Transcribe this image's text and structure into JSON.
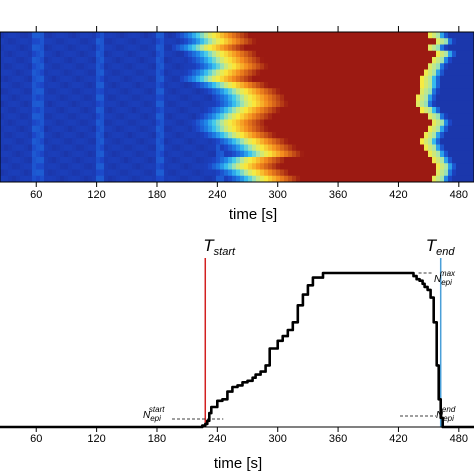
{
  "chart_data": [
    {
      "type": "heatmap",
      "xlabel": "time [s]",
      "ylabel": "",
      "xlim": [
        20,
        510
      ],
      "xticks": [
        60,
        120,
        180,
        240,
        300,
        360,
        420,
        480
      ],
      "rows": 24,
      "colormap": "jet",
      "colors": {
        "low": "#1a2f9e",
        "high": "#9c1a12"
      },
      "onset_by_row_s": [
        232,
        238,
        228,
        240,
        245,
        250,
        242,
        236,
        250,
        262,
        268,
        270,
        262,
        255,
        248,
        250,
        258,
        270,
        278,
        285,
        268,
        262,
        272,
        282
      ],
      "offset_by_row_s": [
        462,
        468,
        460,
        470,
        465,
        460,
        458,
        455,
        455,
        452,
        450,
        448,
        455,
        460,
        465,
        462,
        458,
        455,
        458,
        462,
        466,
        470,
        468,
        465
      ]
    },
    {
      "type": "line",
      "xlabel": "time [s]",
      "ylabel": "",
      "xlim": [
        20,
        510
      ],
      "ylim": [
        0,
        1
      ],
      "xticks": [
        60,
        120,
        180,
        240,
        300,
        360,
        420,
        480
      ],
      "series": [
        {
          "color": "#000000",
          "x": [
            20,
            215,
            225,
            228,
            230,
            232,
            234,
            240,
            245,
            250,
            255,
            260,
            265,
            270,
            275,
            278,
            283,
            288,
            292,
            300,
            305,
            310,
            315,
            320,
            325,
            330,
            335,
            345,
            360,
            380,
            400,
            430,
            435,
            438,
            441,
            444,
            446,
            449,
            452,
            455,
            458,
            460,
            462,
            464,
            510
          ],
          "y": [
            0.0,
            0.0,
            0.01,
            0.02,
            0.04,
            0.09,
            0.13,
            0.17,
            0.18,
            0.23,
            0.26,
            0.27,
            0.29,
            0.3,
            0.32,
            0.34,
            0.36,
            0.4,
            0.51,
            0.56,
            0.59,
            0.63,
            0.68,
            0.79,
            0.86,
            0.92,
            0.97,
            1.0,
            1.0,
            1.0,
            1.0,
            1.0,
            0.98,
            0.96,
            0.95,
            0.93,
            0.91,
            0.89,
            0.84,
            0.68,
            0.4,
            0.18,
            0.06,
            0.0,
            0.0
          ]
        }
      ],
      "markers": {
        "start": {
          "x": 228,
          "main": "T",
          "sub": "start",
          "color": "#d22020"
        },
        "end": {
          "x": 462,
          "main": "T",
          "sub": "end",
          "color": "#4a9fd8"
        }
      },
      "levels": {
        "min": {
          "y": 0.0,
          "main": "N",
          "sub": "epi",
          "sup": "start"
        },
        "max": {
          "y": 1.0,
          "main": "N",
          "sub": "epi",
          "sup": "max"
        },
        "end": {
          "y": 0.0,
          "main": "N",
          "sub": "epi",
          "sup": "end"
        }
      }
    }
  ]
}
